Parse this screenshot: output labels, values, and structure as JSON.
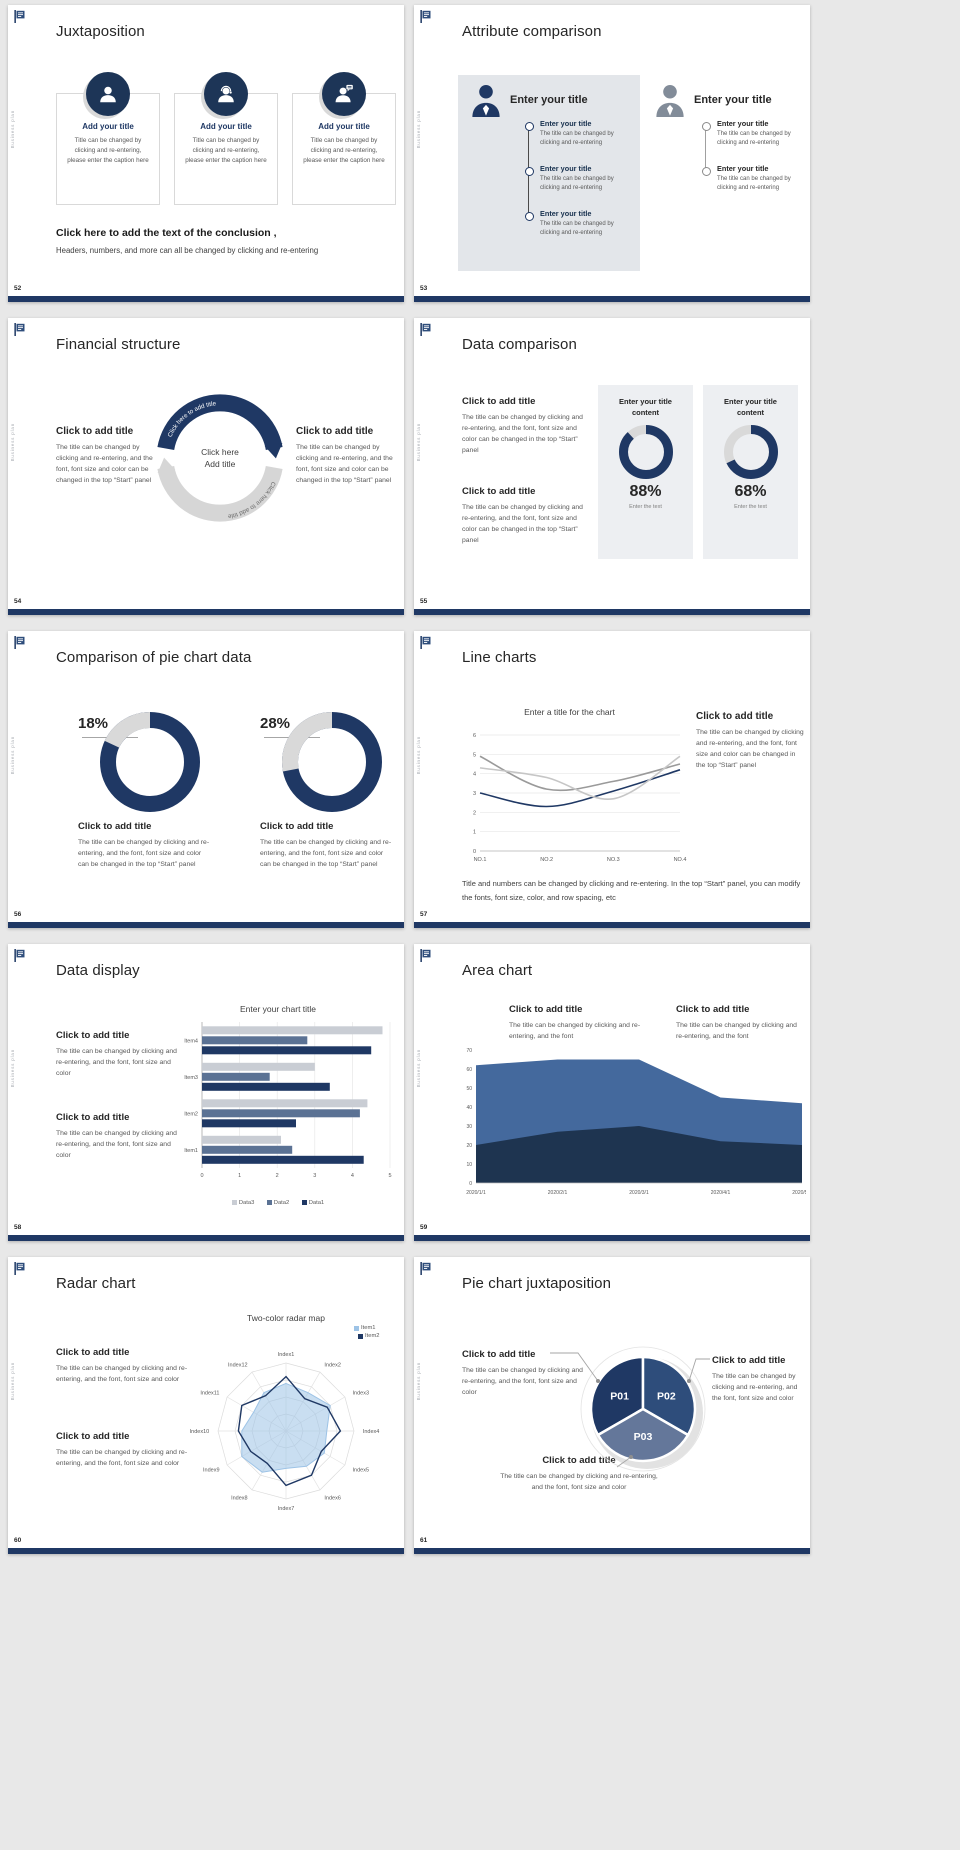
{
  "theme": {
    "navy": "#1f3864",
    "navy_mid": "#2e4d7b",
    "slate": "#5b7294",
    "slate_light": "#64779a",
    "steel": "#44699d",
    "navy_deep": "#1e3450",
    "light_blue": "#9dc3e6",
    "track_gray": "#d9d9d9",
    "footer_bar": "#1f3864",
    "panel_gray": "#e3e6ea",
    "card_gray": "#edeff2",
    "background": "#e8e8e8"
  },
  "common": {
    "side_label": "Business plan"
  },
  "slides": {
    "s52": {
      "number": "52",
      "title": "Juxtaposition",
      "cards": [
        {
          "icon": "person-icon",
          "title": "Add your title",
          "caption": "Title can be changed by clicking and re-entering, please enter the caption here"
        },
        {
          "icon": "support-person-icon",
          "title": "Add your title",
          "caption": "Title can be changed by clicking and re-entering, please enter the caption here"
        },
        {
          "icon": "announcer-person-icon",
          "title": "Add your title",
          "caption": "Title can be changed by clicking and re-entering, please enter the caption here"
        }
      ],
      "conclusion_title": "Click here to add the text of the conclusion ,",
      "conclusion_body": "Headers, numbers, and more can all be changed by clicking and re-entering"
    },
    "s53": {
      "number": "53",
      "title": "Attribute comparison",
      "left": {
        "heading": "Enter your title",
        "items": [
          {
            "title": "Enter your title",
            "caption": "The title can be changed by clicking and re-entering"
          },
          {
            "title": "Enter your title",
            "caption": "The title can be changed by clicking and re-entering"
          },
          {
            "title": "Enter your title",
            "caption": "The title can be changed by clicking and re-entering"
          }
        ]
      },
      "right": {
        "heading": "Enter your title",
        "items": [
          {
            "title": "Enter your title",
            "caption": "The title can be changed by clicking and re-entering"
          },
          {
            "title": "Enter your title",
            "caption": "The title can be changed by clicking and re-entering"
          }
        ]
      }
    },
    "s54": {
      "number": "54",
      "title": "Financial structure",
      "left": {
        "heading": "Click to add title",
        "body": "The title can be changed by clicking and re-entering, and the font, font size and color can be changed in the top “Start” panel"
      },
      "right": {
        "heading": "Click to add title",
        "body": "The title can be changed by clicking and re-entering, and the font, font size and color can be changed in the top “Start” panel"
      },
      "center": {
        "line1": "Click here",
        "line2": "Add title",
        "arc_text_top": "Click here to add title",
        "arc_text_bottom": "Click here to add title"
      }
    },
    "s55": {
      "number": "55",
      "title": "Data comparison",
      "blocks": [
        {
          "heading": "Click to add title",
          "body": "The title can be changed by clicking and re-entering, and the font, font size and color can be changed in the top “Start” panel"
        },
        {
          "heading": "Click to add title",
          "body": "The title can be changed by clicking and re-entering, and the font, font size and color can be changed in the top “Start” panel"
        }
      ],
      "cards": [
        {
          "heading": "Enter your title content",
          "percent": 88,
          "percent_label": "88%",
          "caption": "Enter the text"
        },
        {
          "heading": "Enter your title content",
          "percent": 68,
          "percent_label": "68%",
          "caption": "Enter the text"
        }
      ]
    },
    "s56": {
      "number": "56",
      "title": "Comparison of pie chart data",
      "charts": [
        {
          "value": 18,
          "label": "18%",
          "heading": "Click to add title",
          "body": "The title can be changed by clicking and re-entering, and the font, font size and color can be changed in the top “Start” panel"
        },
        {
          "value": 28,
          "label": "28%",
          "heading": "Click to add title",
          "body": "The title can be changed by clicking and re-entering, and the font, font size and color can be changed in the top “Start” panel"
        }
      ]
    },
    "s57": {
      "number": "57",
      "title": "Line charts",
      "chart": {
        "type": "line",
        "title": "Enter a title for the chart",
        "x_labels": [
          "NO.1",
          "NO.2",
          "NO.3",
          "NO.4"
        ],
        "y_min": 0,
        "y_max": 6,
        "grid": true,
        "series": [
          {
            "name": "series-dark",
            "color": "#1f3864",
            "values": [
              3,
              2.3,
              3.1,
              4.2
            ]
          },
          {
            "name": "series-gray",
            "color": "#9a9a9a",
            "values": [
              4.9,
              3.2,
              3.6,
              4.5
            ]
          },
          {
            "name": "series-light",
            "color": "#c6c6c6",
            "values": [
              4.3,
              3.8,
              2.7,
              4.9
            ]
          }
        ]
      },
      "side": {
        "heading": "Click to add title",
        "body": "The title can be changed by clicking and re-entering, and the font, font size and color can be changed in the top “Start” panel"
      },
      "footnote": "Title and numbers can be changed by clicking and re-entering. In the top “Start” panel, you can modify the fonts, font size, color, and row spacing, etc"
    },
    "s58": {
      "number": "58",
      "title": "Data display",
      "blocks": [
        {
          "heading": "Click to add title",
          "body": "The title can be changed by clicking and re-entering, and the font, font size and color"
        },
        {
          "heading": "Click to add title",
          "body": "The title can be changed by clicking and re-entering, and the font, font size and color"
        }
      ],
      "chart": {
        "type": "bar",
        "title": "Enter your chart title",
        "categories": [
          "Item1",
          "Item2",
          "Item3",
          "Item4"
        ],
        "x_ticks": [
          0,
          1,
          2,
          3,
          4,
          5
        ],
        "x_max": 5,
        "series": [
          {
            "name": "Data3",
            "color": "#c9cdd4",
            "values": [
              2.1,
              4.4,
              3.0,
              4.8
            ]
          },
          {
            "name": "Data2",
            "color": "#5b7294",
            "values": [
              2.4,
              4.2,
              1.8,
              2.8
            ]
          },
          {
            "name": "Data1",
            "color": "#1f3864",
            "values": [
              4.3,
              2.5,
              3.4,
              4.5
            ]
          }
        ]
      }
    },
    "s59": {
      "number": "59",
      "title": "Area chart",
      "blocks": [
        {
          "heading": "Click to add title",
          "body": "The title can be changed by clicking and re-entering, and the font"
        },
        {
          "heading": "Click to add title",
          "body": "The title can be changed by clicking and re-entering, and the font"
        }
      ],
      "chart": {
        "type": "area",
        "x_labels": [
          "2020/1/1",
          "2020/2/1",
          "2020/3/1",
          "2020/4/1",
          "2020/5/1"
        ],
        "y_ticks": [
          0,
          10,
          20,
          30,
          40,
          50,
          60,
          70
        ],
        "y_max": 70,
        "series": [
          {
            "name": "series-steel",
            "color": "#44699d",
            "values": [
              62,
              65,
              65,
              45,
              42
            ]
          },
          {
            "name": "series-navy",
            "color": "#1e3450",
            "values": [
              20,
              27,
              30,
              22,
              20
            ]
          }
        ]
      }
    },
    "s60": {
      "number": "60",
      "title": "Radar chart",
      "blocks": [
        {
          "heading": "Click to add title",
          "body": "The title can be changed by clicking and re-entering, and the font, font size and color"
        },
        {
          "heading": "Click to add title",
          "body": "The title can be changed by clicking and re-entering, and the font, font size and color"
        }
      ],
      "chart": {
        "type": "radar",
        "title": "Two-color radar map",
        "max": 10,
        "axes": [
          "Index1",
          "Index2",
          "Index3",
          "Index4",
          "Index5",
          "Index6",
          "Index7",
          "Index8",
          "Index9",
          "Index10",
          "Index11",
          "Index12"
        ],
        "series": [
          {
            "name": "Item1",
            "color": "#9dc3e6",
            "values": [
              7,
              6.5,
              7.5,
              6,
              6.5,
              6,
              5.5,
              7,
              7.5,
              6.5,
              5.5,
              6.5
            ]
          },
          {
            "name": "Item2",
            "color": "#1f3864",
            "values": [
              8,
              5.5,
              7,
              8,
              6,
              7.5,
              8,
              5.5,
              6,
              7,
              7.5,
              6
            ]
          }
        ]
      }
    },
    "s61": {
      "number": "61",
      "title": "Pie chart juxtaposition",
      "callouts": [
        {
          "heading": "Click to add title",
          "body": "The title can be changed by clicking and re-entering, and the font, font size and color"
        },
        {
          "heading": "Click to add title",
          "body": "The title can be changed by clicking and re-entering, and the font, font size and color"
        },
        {
          "heading": "Click to add title",
          "body": "The title can be changed by clicking and re-entering, and the font, font size and color"
        }
      ],
      "chart": {
        "type": "pie",
        "slices": [
          {
            "label": "P01",
            "color": "#1f3864"
          },
          {
            "label": "P02",
            "color": "#2e4d7b"
          },
          {
            "label": "P03",
            "color": "#64779a"
          }
        ]
      }
    }
  }
}
